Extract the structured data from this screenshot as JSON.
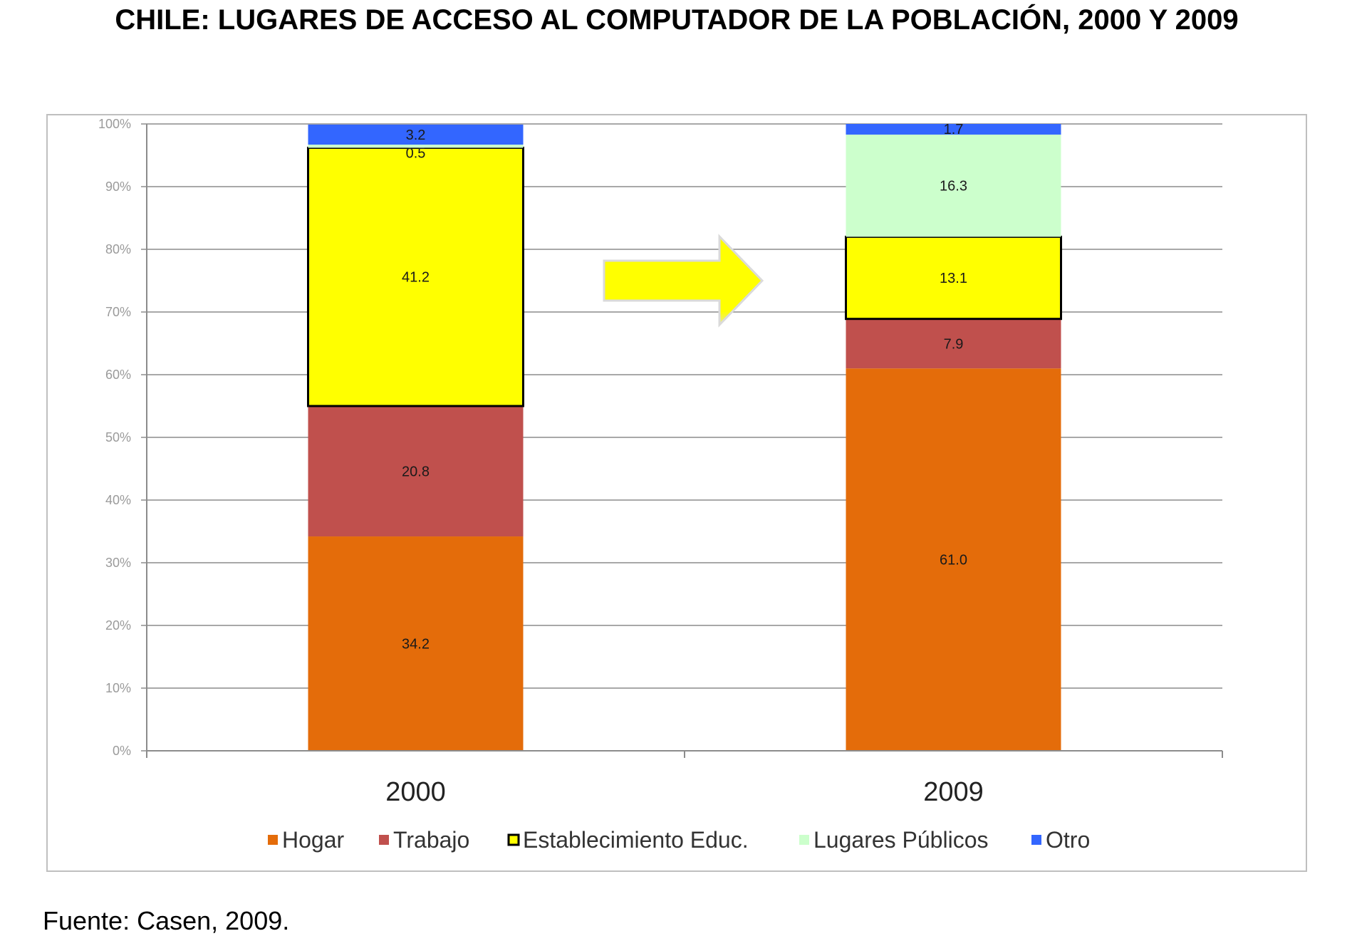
{
  "title": "CHILE: LUGARES DE ACCESO AL COMPUTADOR DE LA POBLACIÓN, 2000 Y 2009",
  "source": "Fuente: Casen, 2009.",
  "chart_data": {
    "type": "bar",
    "stacked": true,
    "title": "CHILE: LUGARES DE ACCESO AL COMPUTADOR DE LA POBLACIÓN, 2000 Y 2009",
    "xlabel": "",
    "ylabel": "",
    "categories": [
      "2000",
      "2009"
    ],
    "yticks": [
      "0%",
      "10%",
      "20%",
      "30%",
      "40%",
      "50%",
      "60%",
      "70%",
      "80%",
      "90%",
      "100%"
    ],
    "ylim": [
      0,
      100
    ],
    "grid": true,
    "legend_position": "bottom",
    "series": [
      {
        "name": "Hogar",
        "values": [
          34.2,
          61.0
        ],
        "labels": [
          "34.2",
          "61.0"
        ],
        "color": "#E46C0A"
      },
      {
        "name": "Trabajo",
        "values": [
          20.8,
          7.9
        ],
        "labels": [
          "20.8",
          "7.9"
        ],
        "color": "#C0504D"
      },
      {
        "name": "Establecimiento Educ.",
        "values": [
          41.2,
          13.1
        ],
        "labels": [
          "41.2",
          "13.1"
        ],
        "color": "#FFFF00",
        "outlined": true
      },
      {
        "name": "Lugares Públicos",
        "values": [
          0.5,
          16.3
        ],
        "labels": [
          "0.5",
          "16.3"
        ],
        "color": "#CCFFCC"
      },
      {
        "name": "Otro",
        "values": [
          3.2,
          1.7
        ],
        "labels": [
          "3.2",
          "1.7"
        ],
        "color": "#3366FF"
      }
    ],
    "annotation": "yellow-arrow"
  }
}
